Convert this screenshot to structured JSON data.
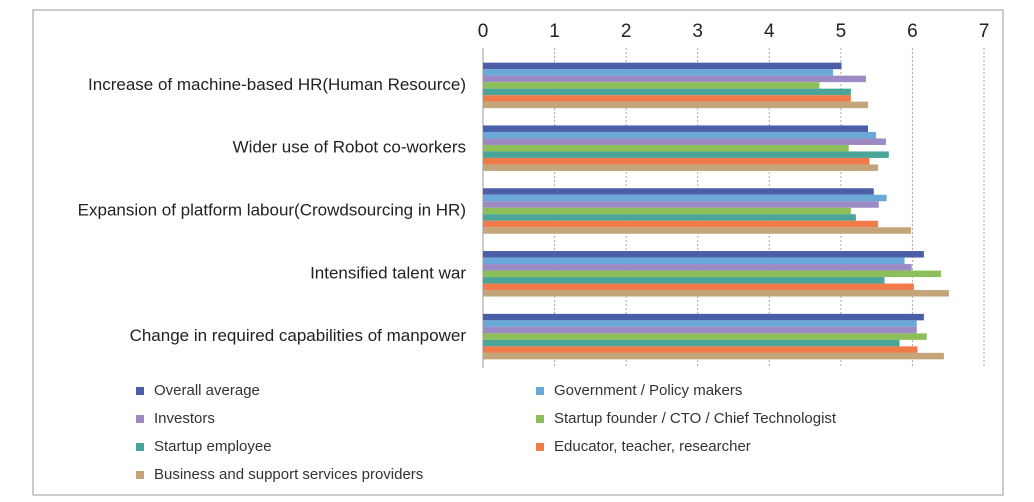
{
  "chart_data": {
    "type": "bar",
    "orientation": "horizontal",
    "categories": [
      "Increase of machine-based HR(Human Resource)",
      "Wider use of Robot co-workers",
      "Expansion of platform labour(Crowdsourcing in HR)",
      "Intensified talent war",
      "Change in required capabilities of manpower"
    ],
    "series": [
      {
        "name": "Overall average",
        "color": "#4a5fa8",
        "values": [
          5.01,
          5.38,
          5.46,
          6.16,
          6.16
        ]
      },
      {
        "name": "Government / Policy makers",
        "color": "#6aa8d8",
        "values": [
          4.89,
          5.49,
          5.64,
          5.89,
          6.06
        ]
      },
      {
        "name": "Investors",
        "color": "#9b8ac4",
        "values": [
          5.35,
          5.63,
          5.53,
          5.99,
          6.06
        ]
      },
      {
        "name": "Startup founder / CTO / Chief Technologist",
        "color": "#8cbf5a",
        "values": [
          4.7,
          5.11,
          5.14,
          6.4,
          6.2
        ]
      },
      {
        "name": "Startup employee",
        "color": "#4aa598",
        "values": [
          5.14,
          5.67,
          5.21,
          5.61,
          5.82
        ]
      },
      {
        "name": "Educator, teacher, researcher",
        "color": "#f07a4a",
        "values": [
          5.14,
          5.4,
          5.52,
          6.02,
          6.07
        ]
      },
      {
        "name": "Business and support services providers",
        "color": "#c4a57a",
        "values": [
          5.38,
          5.52,
          5.98,
          6.51,
          6.44
        ]
      }
    ],
    "xlim": [
      0,
      7
    ],
    "xticks": [
      0,
      1,
      2,
      3,
      4,
      5,
      6,
      7
    ],
    "grid": true
  }
}
